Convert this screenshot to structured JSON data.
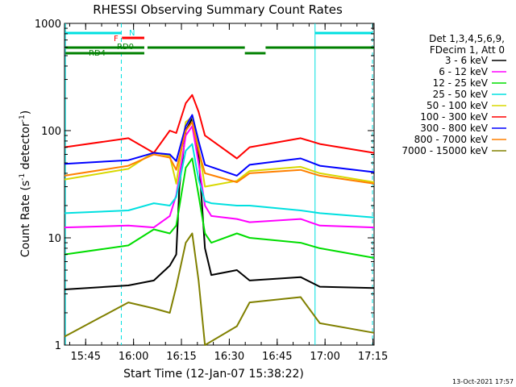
{
  "chart_data": {
    "type": "line",
    "title": "RHESSI Observing Summary Count Rates",
    "xlabel": "Start Time (12-Jan-07 15:38:22)",
    "ylabel_main": "Count Rate (s",
    "ylabel_sup1": "-1",
    "ylabel_mid": " detector",
    "ylabel_sup2": "-1",
    "ylabel_end": ")",
    "y_scale": "log",
    "ylim": [
      1,
      1000
    ],
    "xlim_minutes_from_start": [
      0,
      97
    ],
    "x_ticks": [
      "15:45",
      "16:00",
      "16:15",
      "16:30",
      "16:45",
      "17:00",
      "17:15"
    ],
    "y_ticks": [
      "1",
      "10",
      "100",
      "1000"
    ],
    "legend_header": [
      "Det 1,3,4,5,6,9,",
      "FDecim 1, Att 0"
    ],
    "legend_position": "right",
    "timestamp": "13-Oct-2021 17:57",
    "flag_labels": {
      "N": "N",
      "F": "F",
      "RD0": "RD0",
      "RD4": "RD4"
    },
    "series": [
      {
        "name": "3 - 6 keV",
        "color": "#000000",
        "values": [
          [
            0,
            3.3
          ],
          [
            20,
            3.6
          ],
          [
            28,
            4.0
          ],
          [
            33,
            5.5
          ],
          [
            35,
            7.0
          ],
          [
            36,
            30
          ],
          [
            38,
            100
          ],
          [
            40,
            130
          ],
          [
            42,
            60
          ],
          [
            44,
            8
          ],
          [
            46,
            4.5
          ],
          [
            54,
            5.0
          ],
          [
            58,
            4.0
          ],
          [
            74,
            4.3
          ],
          [
            80,
            3.5
          ],
          [
            97,
            3.4
          ]
        ]
      },
      {
        "name": "6 - 12 keV",
        "color": "#ff00ff",
        "values": [
          [
            0,
            12.5
          ],
          [
            20,
            13
          ],
          [
            28,
            12.5
          ],
          [
            33,
            16
          ],
          [
            35,
            25
          ],
          [
            38,
            90
          ],
          [
            40,
            110
          ],
          [
            42,
            50
          ],
          [
            44,
            20
          ],
          [
            46,
            16
          ],
          [
            54,
            15
          ],
          [
            58,
            14
          ],
          [
            74,
            15
          ],
          [
            80,
            13
          ],
          [
            97,
            12.5
          ]
        ]
      },
      {
        "name": "12 - 25 keV",
        "color": "#00dd00",
        "values": [
          [
            0,
            7.0
          ],
          [
            20,
            8.5
          ],
          [
            28,
            12
          ],
          [
            33,
            11
          ],
          [
            35,
            13
          ],
          [
            38,
            45
          ],
          [
            40,
            55
          ],
          [
            42,
            25
          ],
          [
            44,
            11
          ],
          [
            46,
            9
          ],
          [
            54,
            11
          ],
          [
            58,
            10
          ],
          [
            74,
            9
          ],
          [
            80,
            8
          ],
          [
            97,
            6.5
          ]
        ]
      },
      {
        "name": "25 - 50 keV",
        "color": "#00e0e0",
        "values": [
          [
            0,
            17
          ],
          [
            20,
            18
          ],
          [
            28,
            21
          ],
          [
            33,
            20
          ],
          [
            35,
            24
          ],
          [
            38,
            65
          ],
          [
            40,
            75
          ],
          [
            42,
            35
          ],
          [
            44,
            22
          ],
          [
            46,
            21
          ],
          [
            54,
            20
          ],
          [
            58,
            20
          ],
          [
            74,
            18
          ],
          [
            80,
            17
          ],
          [
            97,
            15.5
          ]
        ]
      },
      {
        "name": "50 - 100 keV",
        "color": "#d8d800",
        "values": [
          [
            0,
            35
          ],
          [
            20,
            44
          ],
          [
            28,
            63
          ],
          [
            33,
            58
          ],
          [
            35,
            32
          ],
          [
            38,
            120
          ],
          [
            40,
            135
          ],
          [
            42,
            70
          ],
          [
            44,
            30
          ],
          [
            54,
            34
          ],
          [
            58,
            42
          ],
          [
            74,
            46
          ],
          [
            80,
            40
          ],
          [
            97,
            33
          ]
        ]
      },
      {
        "name": "100 - 300 keV",
        "color": "#ff0000",
        "values": [
          [
            0,
            70
          ],
          [
            20,
            85
          ],
          [
            28,
            62
          ],
          [
            33,
            100
          ],
          [
            35,
            95
          ],
          [
            38,
            180
          ],
          [
            40,
            215
          ],
          [
            42,
            150
          ],
          [
            44,
            90
          ],
          [
            54,
            55
          ],
          [
            58,
            70
          ],
          [
            74,
            85
          ],
          [
            80,
            75
          ],
          [
            97,
            62
          ]
        ]
      },
      {
        "name": "300 - 800 keV",
        "color": "#0000ff",
        "values": [
          [
            0,
            49
          ],
          [
            20,
            53
          ],
          [
            28,
            62
          ],
          [
            33,
            60
          ],
          [
            35,
            52
          ],
          [
            38,
            110
          ],
          [
            40,
            140
          ],
          [
            42,
            80
          ],
          [
            44,
            48
          ],
          [
            54,
            38
          ],
          [
            58,
            48
          ],
          [
            74,
            55
          ],
          [
            80,
            47
          ],
          [
            97,
            41
          ]
        ]
      },
      {
        "name": "800 - 7000 keV",
        "color": "#ff8000",
        "values": [
          [
            0,
            38
          ],
          [
            20,
            47
          ],
          [
            28,
            60
          ],
          [
            33,
            56
          ],
          [
            35,
            43
          ],
          [
            38,
            100
          ],
          [
            40,
            120
          ],
          [
            42,
            65
          ],
          [
            44,
            40
          ],
          [
            54,
            33
          ],
          [
            58,
            40
          ],
          [
            74,
            43
          ],
          [
            80,
            38
          ],
          [
            97,
            32
          ]
        ]
      },
      {
        "name": "7000 - 15000 keV",
        "color": "#808000",
        "values": [
          [
            0,
            1.2
          ],
          [
            20,
            2.5
          ],
          [
            28,
            2.2
          ],
          [
            33,
            2.0
          ],
          [
            35,
            3.5
          ],
          [
            38,
            9
          ],
          [
            40,
            11
          ],
          [
            42,
            4
          ],
          [
            44,
            1.0
          ],
          [
            54,
            1.5
          ],
          [
            58,
            2.5
          ],
          [
            74,
            2.8
          ],
          [
            80,
            1.6
          ],
          [
            97,
            1.3
          ]
        ]
      }
    ]
  }
}
